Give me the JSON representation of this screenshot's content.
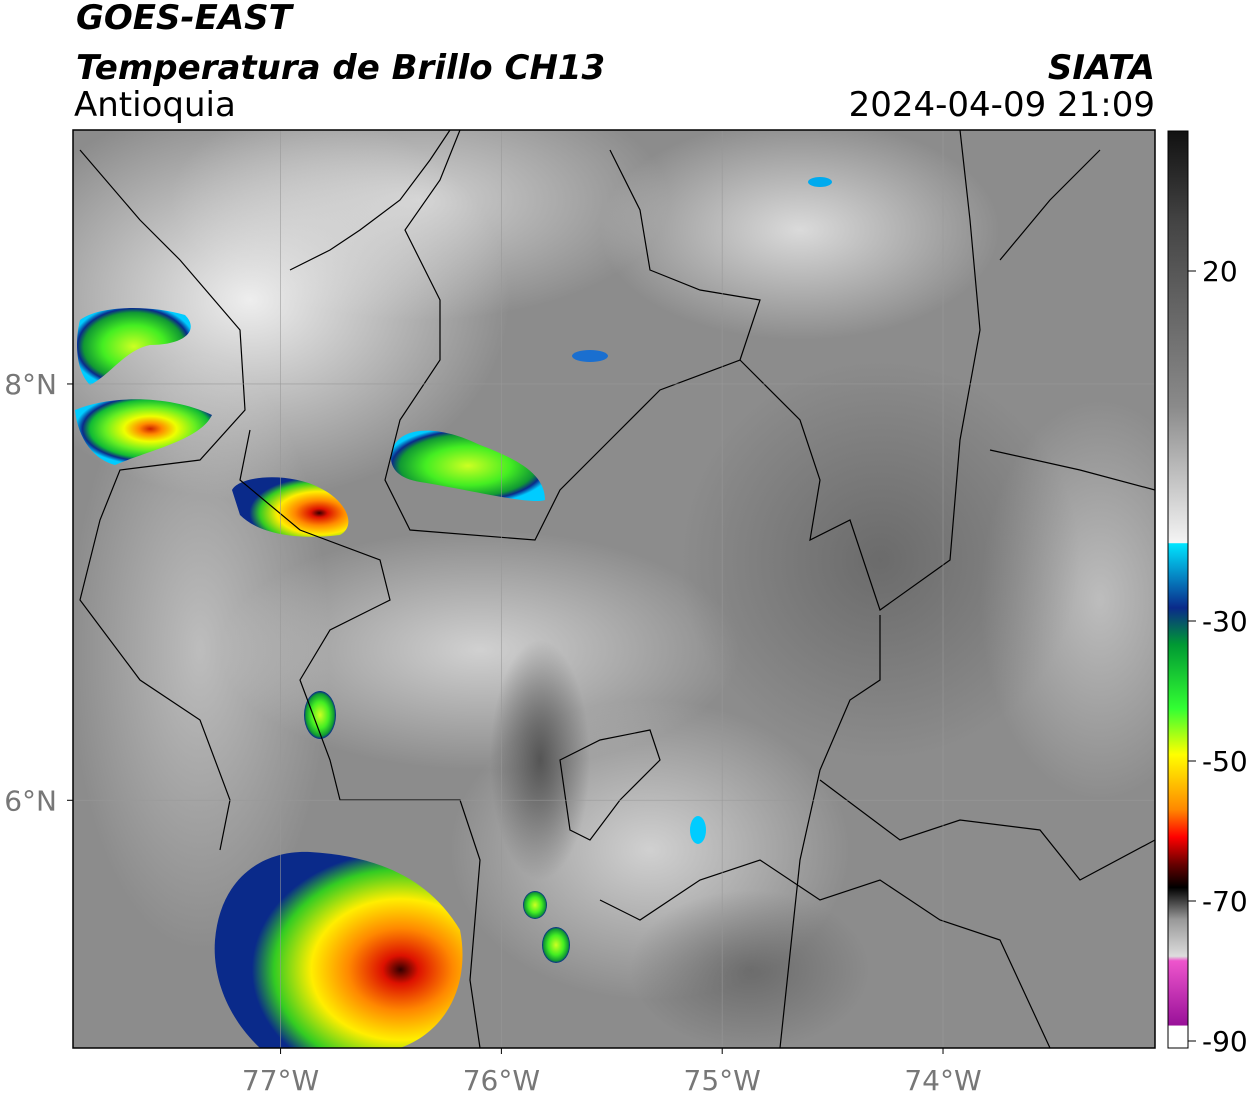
{
  "header": {
    "satellite": "GOES-EAST",
    "product": "Temperatura de Brillo CH13",
    "region": "Antioquia",
    "agency": "SIATA",
    "datetime": "2024-04-09 21:09"
  },
  "map": {
    "lon_lim": [
      -77.94,
      -73.04
    ],
    "lat_lim": [
      4.81,
      9.22
    ],
    "lon_ticks": [
      {
        "value": -77,
        "label": "77°W"
      },
      {
        "value": -76,
        "label": "76°W"
      },
      {
        "value": -75,
        "label": "75°W"
      },
      {
        "value": -74,
        "label": "74°W"
      }
    ],
    "lat_ticks": [
      {
        "value": 8,
        "label": "8°N"
      },
      {
        "value": 6,
        "label": "6°N"
      }
    ]
  },
  "colorbar": {
    "lim": [
      -91,
      40
    ],
    "ticks": [
      20,
      -30,
      -50,
      -70,
      -90
    ]
  }
}
